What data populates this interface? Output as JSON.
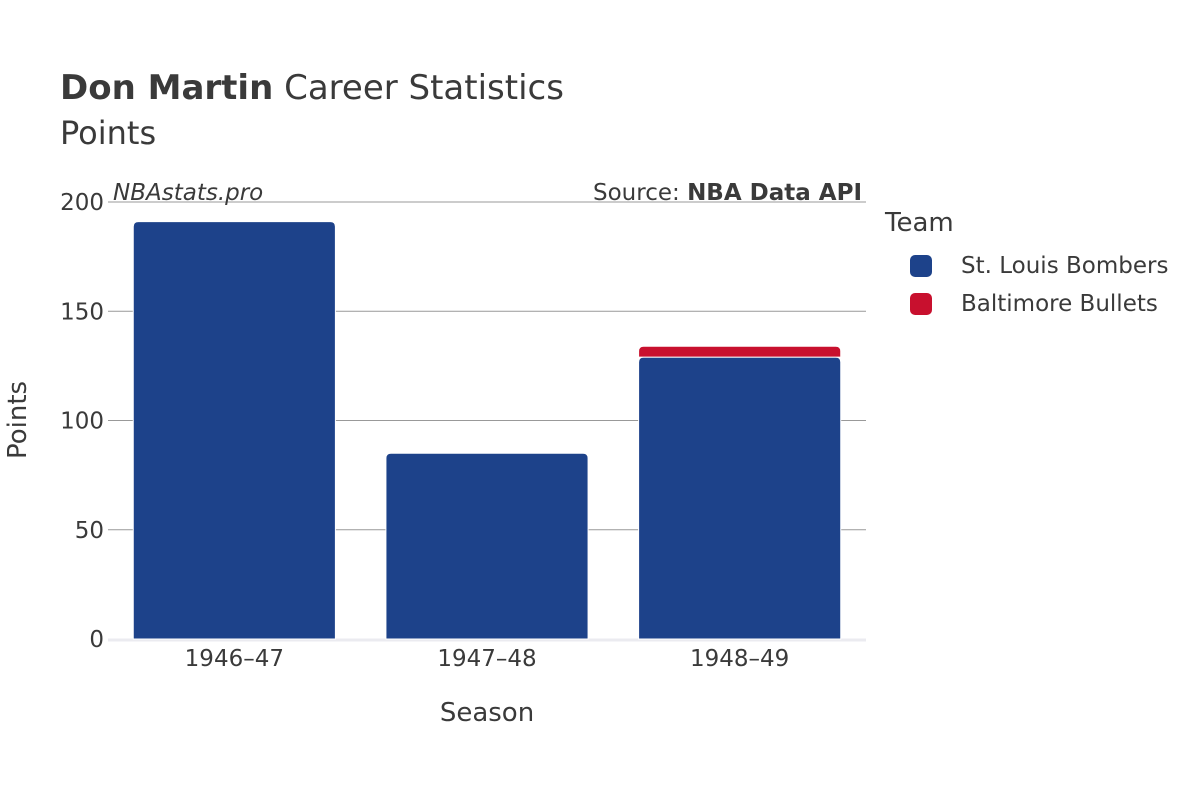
{
  "header": {
    "title_bold": "Don Martin",
    "title_rest": "Career Statistics",
    "subtitle": "Points"
  },
  "watermark": "NBAstats.pro",
  "source": {
    "prefix": "Source: ",
    "name": "NBA Data API"
  },
  "legend": {
    "title": "Team",
    "items": [
      {
        "label": "St. Louis Bombers",
        "color": "#1d428a"
      },
      {
        "label": "Baltimore Bullets",
        "color": "#c8102e"
      }
    ]
  },
  "chart_data": {
    "type": "bar",
    "stacked": true,
    "categories": [
      "1946–47",
      "1947–48",
      "1948–49"
    ],
    "series": [
      {
        "name": "St. Louis Bombers",
        "color": "#1d428a",
        "values": [
          191,
          85,
          129
        ]
      },
      {
        "name": "Baltimore Bullets",
        "color": "#c8102e",
        "values": [
          0,
          0,
          5
        ]
      }
    ],
    "xlabel": "Season",
    "ylabel": "Points",
    "ylim": [
      0,
      200
    ],
    "yticks": [
      0,
      50,
      100,
      150,
      200
    ],
    "grid": true,
    "legend_position": "right"
  }
}
